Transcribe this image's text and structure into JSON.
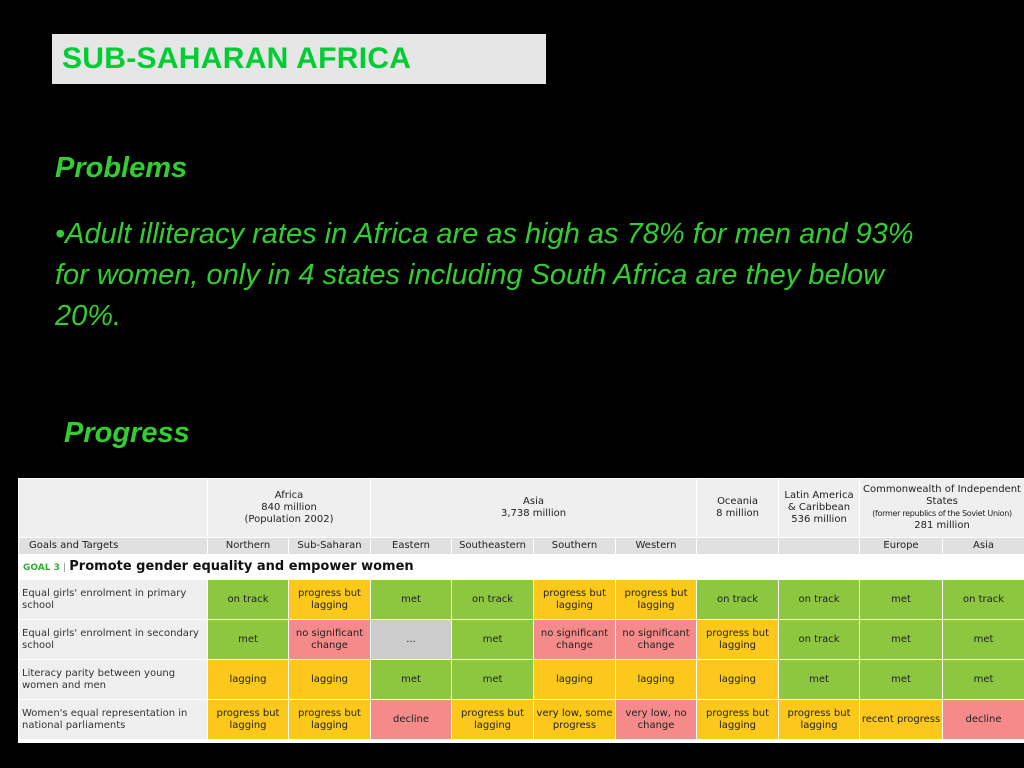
{
  "slide": {
    "title": "SUB-SAHARAN AFRICA",
    "problems_heading": "Problems",
    "bullet": "•Adult illiteracy rates in Africa are as high as 78% for men and 93% for women, only in 4 states including South Africa are they below 20%.",
    "progress_heading": "Progress"
  },
  "table": {
    "regions": [
      {
        "name": "Africa",
        "pop": "840 million",
        "note": "(Population 2002)"
      },
      {
        "name": "Asia",
        "pop": "3,738 million"
      },
      {
        "name": "Oceania",
        "pop": "8 million"
      },
      {
        "name": "Latin America & Caribbean",
        "pop": "536 million"
      },
      {
        "name": "Commonwealth of Independent States",
        "note": "(former republics of the Soviet Union)",
        "pop": "281 million"
      }
    ],
    "goals_label": "Goals and Targets",
    "subregions": [
      "Northern",
      "Sub-Saharan",
      "Eastern",
      "Southeastern",
      "Southern",
      "Western",
      "",
      "",
      "Europe",
      "Asia"
    ],
    "goal_tag": "GOAL 3",
    "goal_title": "Promote gender equality and empower women",
    "rows": [
      {
        "name": "Equal girls' enrolment in primary school",
        "cells": [
          {
            "text": "on track",
            "status": "green"
          },
          {
            "text": "progress but lagging",
            "status": "yellow"
          },
          {
            "text": "met",
            "status": "green"
          },
          {
            "text": "on track",
            "status": "green"
          },
          {
            "text": "progress but lagging",
            "status": "yellow"
          },
          {
            "text": "progress but lagging",
            "status": "yellow"
          },
          {
            "text": "on track",
            "status": "green"
          },
          {
            "text": "on track",
            "status": "green"
          },
          {
            "text": "met",
            "status": "green"
          },
          {
            "text": "on track",
            "status": "green"
          }
        ]
      },
      {
        "name": "Equal girls' enrolment in secondary school",
        "cells": [
          {
            "text": "met",
            "status": "green"
          },
          {
            "text": "no significant change",
            "status": "pink"
          },
          {
            "text": "...",
            "status": "grey"
          },
          {
            "text": "met",
            "status": "green"
          },
          {
            "text": "no significant change",
            "status": "pink"
          },
          {
            "text": "no significant change",
            "status": "pink"
          },
          {
            "text": "progress but lagging",
            "status": "yellow"
          },
          {
            "text": "on track",
            "status": "green"
          },
          {
            "text": "met",
            "status": "green"
          },
          {
            "text": "met",
            "status": "green"
          }
        ]
      },
      {
        "name": "Literacy parity between young women and men",
        "cells": [
          {
            "text": "lagging",
            "status": "yellow"
          },
          {
            "text": "lagging",
            "status": "yellow"
          },
          {
            "text": "met",
            "status": "green"
          },
          {
            "text": "met",
            "status": "green"
          },
          {
            "text": "lagging",
            "status": "yellow"
          },
          {
            "text": "lagging",
            "status": "yellow"
          },
          {
            "text": "lagging",
            "status": "yellow"
          },
          {
            "text": "met",
            "status": "green"
          },
          {
            "text": "met",
            "status": "green"
          },
          {
            "text": "met",
            "status": "green"
          }
        ]
      },
      {
        "name": "Women's equal representation in national parliaments",
        "cells": [
          {
            "text": "progress but lagging",
            "status": "yellow"
          },
          {
            "text": "progress but lagging",
            "status": "yellow"
          },
          {
            "text": "decline",
            "status": "pink"
          },
          {
            "text": "progress but lagging",
            "status": "yellow"
          },
          {
            "text": "very low, some progress",
            "status": "yellow"
          },
          {
            "text": "very low, no change",
            "status": "pink"
          },
          {
            "text": "progress but lagging",
            "status": "yellow"
          },
          {
            "text": "progress but lagging",
            "status": "yellow"
          },
          {
            "text": "recent progress",
            "status": "yellow"
          },
          {
            "text": "decline",
            "status": "pink"
          }
        ]
      }
    ],
    "colors": {
      "green": "#8dc63f",
      "yellow": "#fdc81c",
      "pink": "#f58a8a",
      "grey": "#cccccc"
    }
  }
}
